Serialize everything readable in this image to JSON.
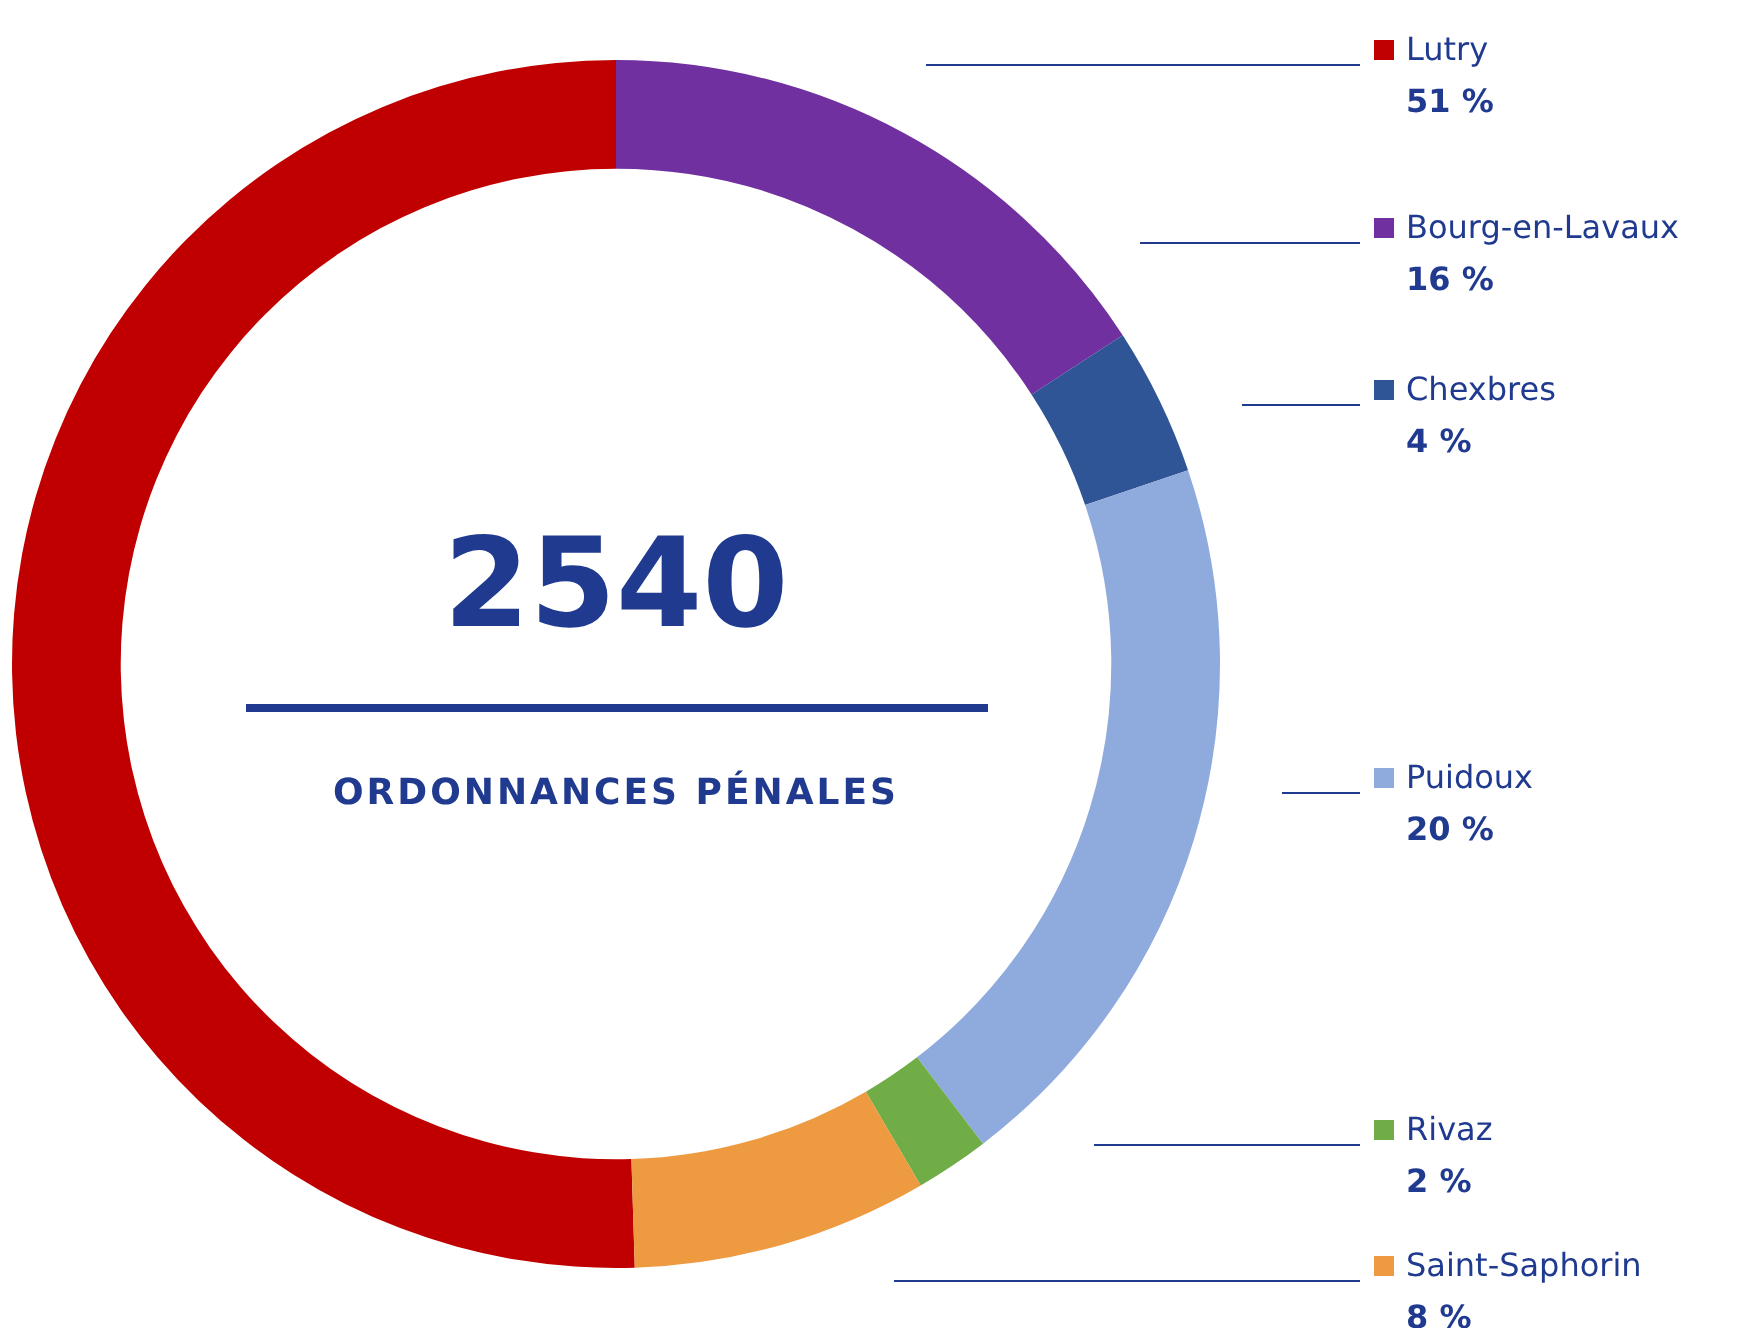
{
  "chart_data": {
    "type": "donut",
    "categories": [
      "Lutry",
      "Bourg-en-Lavaux",
      "Chexbres",
      "Puidoux",
      "Rivaz",
      "Saint-Saphorin"
    ],
    "values": [
      51,
      16,
      4,
      20,
      2,
      8
    ],
    "value_labels": [
      "51 %",
      "16 %",
      "4 %",
      "20 %",
      "2 %",
      "8 %"
    ],
    "colors": [
      "#c00000",
      "#7030a0",
      "#2f5597",
      "#8faadc",
      "#70ad47",
      "#ed9a40"
    ],
    "annotations": [
      "2540",
      "ORDONNANCES PÉNALES"
    ],
    "legend": "right"
  }
}
